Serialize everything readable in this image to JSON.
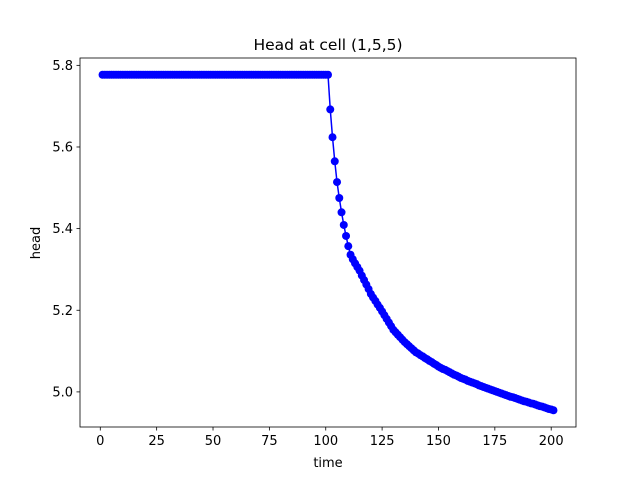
{
  "chart_data": {
    "type": "line",
    "title": "Head at cell (1,5,5)",
    "xlabel": "time",
    "ylabel": "head",
    "color": "#0000ff",
    "marker": true,
    "x": [
      1,
      2,
      3,
      4,
      5,
      6,
      7,
      8,
      9,
      10,
      11,
      12,
      13,
      14,
      15,
      16,
      17,
      18,
      19,
      20,
      21,
      22,
      23,
      24,
      25,
      26,
      27,
      28,
      29,
      30,
      31,
      32,
      33,
      34,
      35,
      36,
      37,
      38,
      39,
      40,
      41,
      42,
      43,
      44,
      45,
      46,
      47,
      48,
      49,
      50,
      51,
      52,
      53,
      54,
      55,
      56,
      57,
      58,
      59,
      60,
      61,
      62,
      63,
      64,
      65,
      66,
      67,
      68,
      69,
      70,
      71,
      72,
      73,
      74,
      75,
      76,
      77,
      78,
      79,
      80,
      81,
      82,
      83,
      84,
      85,
      86,
      87,
      88,
      89,
      90,
      91,
      92,
      93,
      94,
      95,
      96,
      97,
      98,
      99,
      100,
      101,
      102,
      103,
      104,
      105,
      106,
      107,
      108,
      109,
      110,
      111,
      112,
      113,
      114,
      115,
      116,
      117,
      118,
      119,
      120,
      121,
      122,
      123,
      124,
      125,
      126,
      127,
      128,
      129,
      130,
      131,
      132,
      133,
      134,
      135,
      136,
      137,
      138,
      139,
      140,
      141,
      142,
      143,
      144,
      145,
      146,
      147,
      148,
      149,
      150,
      151,
      152,
      153,
      154,
      155,
      156,
      157,
      158,
      159,
      160,
      161,
      162,
      163,
      164,
      165,
      166,
      167,
      168,
      169,
      170,
      171,
      172,
      173,
      174,
      175,
      176,
      177,
      178,
      179,
      180,
      181,
      182,
      183,
      184,
      185,
      186,
      187,
      188,
      189,
      190,
      191,
      192,
      193,
      194,
      195,
      196,
      197,
      198,
      199,
      200,
      201
    ],
    "values": [
      5.777,
      5.777,
      5.777,
      5.777,
      5.777,
      5.777,
      5.777,
      5.777,
      5.777,
      5.777,
      5.777,
      5.777,
      5.777,
      5.777,
      5.777,
      5.777,
      5.777,
      5.777,
      5.777,
      5.777,
      5.777,
      5.777,
      5.777,
      5.777,
      5.777,
      5.777,
      5.777,
      5.777,
      5.777,
      5.777,
      5.777,
      5.777,
      5.777,
      5.777,
      5.777,
      5.777,
      5.777,
      5.777,
      5.777,
      5.777,
      5.777,
      5.777,
      5.777,
      5.777,
      5.777,
      5.777,
      5.777,
      5.777,
      5.777,
      5.777,
      5.777,
      5.777,
      5.777,
      5.777,
      5.777,
      5.777,
      5.777,
      5.777,
      5.777,
      5.777,
      5.777,
      5.777,
      5.777,
      5.777,
      5.777,
      5.777,
      5.777,
      5.777,
      5.777,
      5.777,
      5.777,
      5.777,
      5.777,
      5.777,
      5.777,
      5.777,
      5.777,
      5.777,
      5.777,
      5.777,
      5.777,
      5.777,
      5.777,
      5.777,
      5.777,
      5.777,
      5.777,
      5.777,
      5.777,
      5.777,
      5.777,
      5.777,
      5.777,
      5.777,
      5.777,
      5.777,
      5.777,
      5.777,
      5.777,
      5.777,
      5.777,
      5.692,
      5.624,
      5.565,
      5.514,
      5.475,
      5.44,
      5.409,
      5.382,
      5.357,
      5.336,
      5.325,
      5.315,
      5.306,
      5.297,
      5.285,
      5.274,
      5.263,
      5.252,
      5.24,
      5.231,
      5.223,
      5.214,
      5.206,
      5.197,
      5.188,
      5.179,
      5.17,
      5.161,
      5.152,
      5.146,
      5.14,
      5.134,
      5.128,
      5.122,
      5.117,
      5.112,
      5.107,
      5.102,
      5.097,
      5.094,
      5.09,
      5.087,
      5.083,
      5.08,
      5.076,
      5.073,
      5.069,
      5.066,
      5.062,
      5.059,
      5.056,
      5.054,
      5.051,
      5.048,
      5.045,
      5.042,
      5.04,
      5.037,
      5.034,
      5.032,
      5.03,
      5.027,
      5.025,
      5.023,
      5.021,
      5.019,
      5.016,
      5.014,
      5.012,
      5.01,
      5.008,
      5.006,
      5.004,
      5.002,
      5.0,
      4.998,
      4.996,
      4.994,
      4.992,
      4.99,
      4.988,
      4.987,
      4.985,
      4.983,
      4.981,
      4.979,
      4.977,
      4.976,
      4.974,
      4.972,
      4.971,
      4.969,
      4.967,
      4.965,
      4.964,
      4.962,
      4.96,
      4.958,
      4.957,
      4.955
    ],
    "xlim": [
      -9,
      211
    ],
    "xticks": [
      0,
      25,
      50,
      75,
      100,
      125,
      150,
      175,
      200
    ],
    "ylim": [
      4.914,
      5.818
    ],
    "yticks": [
      {
        "value": 5,
        "label": "5.0"
      },
      5.2,
      5.4,
      5.6,
      5.8
    ]
  }
}
